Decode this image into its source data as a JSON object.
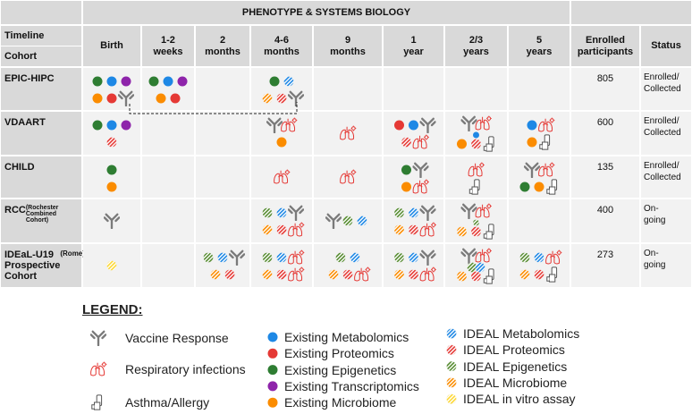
{
  "header": {
    "title": "PHENOTYPE & SYSTEMS BIOLOGY",
    "timeline": "Timeline",
    "cohort": "Cohort",
    "columns": [
      "Birth",
      "1-2 weeks",
      "2 months",
      "4-6 months",
      "9 months",
      "1 year",
      "2/3 years",
      "5 years"
    ],
    "enrolled": "Enrolled participants",
    "status": "Status"
  },
  "rows": [
    {
      "name": "EPIC-HIPC",
      "enrolled": 805,
      "status": "Enrolled/ Collected"
    },
    {
      "name": "VDAART",
      "enrolled": 600,
      "status": "Enrolled/ Collected"
    },
    {
      "name": "CHILD",
      "enrolled": 135,
      "status": "Enrolled/ Collected"
    },
    {
      "name": "RCC",
      "note": "(Rochester Combined Cohort)",
      "enrolled": 400,
      "status": "On-going"
    },
    {
      "name": "IDEaL-U19 Prospective Cohort",
      "note": "(Rome)",
      "enrolled": 273,
      "status": "On-going"
    }
  ],
  "legend": {
    "title": "LEGEND:",
    "icons": [
      "Vaccine Response",
      "Respiratory infections",
      "Asthma/Allergy"
    ],
    "existing": [
      "Existing Metabolomics",
      "Existing Proteomics",
      "Existing Epigenetics",
      "Existing Transcriptomics",
      "Existing Microbiome"
    ],
    "ideal": [
      "IDEAL Metabolomics",
      "IDEAL Proteomics",
      "IDEAL Epigenetics",
      "IDEAL Microbiome",
      "IDEAL in vitro assay"
    ]
  }
}
